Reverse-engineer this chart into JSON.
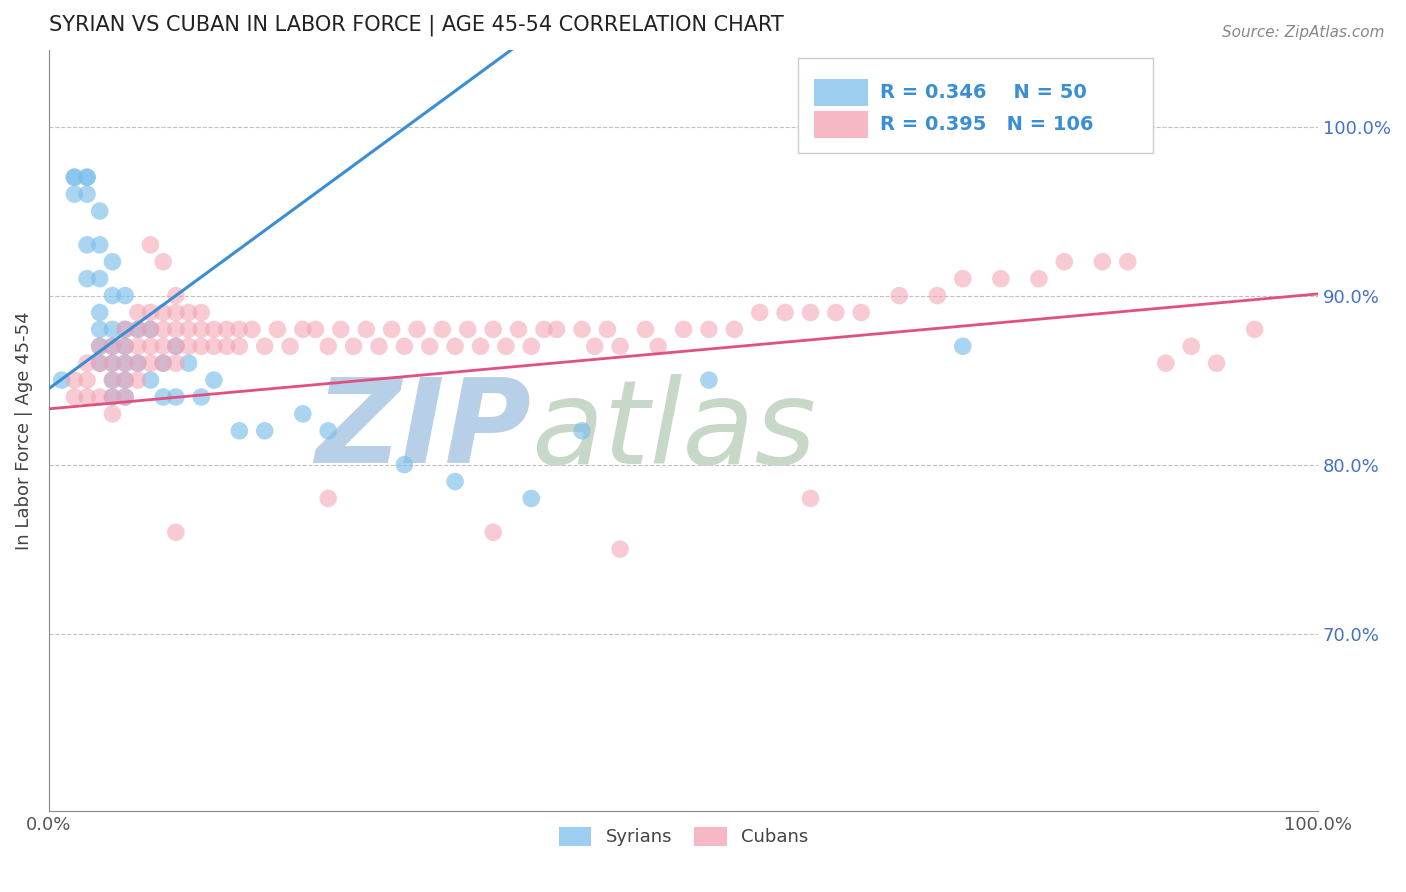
{
  "title": "SYRIAN VS CUBAN IN LABOR FORCE | AGE 45-54 CORRELATION CHART",
  "source": "Source: ZipAtlas.com",
  "ylabel": "In Labor Force | Age 45-54",
  "xlim": [
    0.0,
    1.0
  ],
  "ylim": [
    0.595,
    1.045
  ],
  "yticks": [
    0.7,
    0.8,
    0.9,
    1.0
  ],
  "ytick_labels": [
    "70.0%",
    "80.0%",
    "90.0%",
    "100.0%"
  ],
  "blue_R": 0.346,
  "blue_N": 50,
  "pink_R": 0.395,
  "pink_N": 106,
  "blue_color": "#7bbfea",
  "pink_color": "#f4a0b0",
  "blue_line_color": "#3a8fd4",
  "pink_line_color": "#e05080",
  "syrians_x": [
    0.01,
    0.02,
    0.02,
    0.02,
    0.03,
    0.03,
    0.03,
    0.03,
    0.03,
    0.04,
    0.04,
    0.04,
    0.04,
    0.04,
    0.04,
    0.04,
    0.05,
    0.05,
    0.05,
    0.05,
    0.05,
    0.05,
    0.05,
    0.06,
    0.06,
    0.06,
    0.06,
    0.06,
    0.06,
    0.07,
    0.07,
    0.08,
    0.08,
    0.09,
    0.09,
    0.1,
    0.1,
    0.11,
    0.12,
    0.13,
    0.15,
    0.17,
    0.2,
    0.22,
    0.28,
    0.32,
    0.38,
    0.42,
    0.52,
    0.72
  ],
  "syrians_y": [
    0.85,
    0.97,
    0.97,
    0.96,
    0.97,
    0.97,
    0.96,
    0.93,
    0.91,
    0.95,
    0.93,
    0.91,
    0.89,
    0.88,
    0.87,
    0.86,
    0.92,
    0.9,
    0.88,
    0.87,
    0.86,
    0.85,
    0.84,
    0.9,
    0.88,
    0.87,
    0.86,
    0.85,
    0.84,
    0.88,
    0.86,
    0.88,
    0.85,
    0.86,
    0.84,
    0.87,
    0.84,
    0.86,
    0.84,
    0.85,
    0.82,
    0.82,
    0.83,
    0.82,
    0.8,
    0.79,
    0.78,
    0.82,
    0.85,
    0.87
  ],
  "cubans_x": [
    0.02,
    0.02,
    0.03,
    0.03,
    0.03,
    0.04,
    0.04,
    0.04,
    0.05,
    0.05,
    0.05,
    0.05,
    0.05,
    0.06,
    0.06,
    0.06,
    0.06,
    0.06,
    0.07,
    0.07,
    0.07,
    0.07,
    0.07,
    0.08,
    0.08,
    0.08,
    0.08,
    0.09,
    0.09,
    0.09,
    0.09,
    0.1,
    0.1,
    0.1,
    0.1,
    0.1,
    0.11,
    0.11,
    0.11,
    0.12,
    0.12,
    0.12,
    0.13,
    0.13,
    0.14,
    0.14,
    0.15,
    0.15,
    0.16,
    0.17,
    0.18,
    0.19,
    0.2,
    0.21,
    0.22,
    0.23,
    0.24,
    0.25,
    0.26,
    0.27,
    0.28,
    0.29,
    0.3,
    0.31,
    0.32,
    0.33,
    0.34,
    0.35,
    0.36,
    0.37,
    0.38,
    0.39,
    0.4,
    0.42,
    0.43,
    0.44,
    0.45,
    0.47,
    0.48,
    0.5,
    0.52,
    0.54,
    0.56,
    0.58,
    0.6,
    0.62,
    0.64,
    0.67,
    0.7,
    0.72,
    0.75,
    0.78,
    0.8,
    0.83,
    0.85,
    0.88,
    0.9,
    0.92,
    0.95,
    0.08,
    0.09,
    0.1,
    0.22,
    0.35,
    0.45,
    0.6
  ],
  "cubans_y": [
    0.85,
    0.84,
    0.86,
    0.85,
    0.84,
    0.87,
    0.86,
    0.84,
    0.87,
    0.86,
    0.85,
    0.84,
    0.83,
    0.88,
    0.87,
    0.86,
    0.85,
    0.84,
    0.89,
    0.88,
    0.87,
    0.86,
    0.85,
    0.89,
    0.88,
    0.87,
    0.86,
    0.89,
    0.88,
    0.87,
    0.86,
    0.9,
    0.89,
    0.88,
    0.87,
    0.86,
    0.89,
    0.88,
    0.87,
    0.89,
    0.88,
    0.87,
    0.88,
    0.87,
    0.88,
    0.87,
    0.88,
    0.87,
    0.88,
    0.87,
    0.88,
    0.87,
    0.88,
    0.88,
    0.87,
    0.88,
    0.87,
    0.88,
    0.87,
    0.88,
    0.87,
    0.88,
    0.87,
    0.88,
    0.87,
    0.88,
    0.87,
    0.88,
    0.87,
    0.88,
    0.87,
    0.88,
    0.88,
    0.88,
    0.87,
    0.88,
    0.87,
    0.88,
    0.87,
    0.88,
    0.88,
    0.88,
    0.89,
    0.89,
    0.89,
    0.89,
    0.89,
    0.9,
    0.9,
    0.91,
    0.91,
    0.91,
    0.92,
    0.92,
    0.92,
    0.86,
    0.87,
    0.86,
    0.88,
    0.93,
    0.92,
    0.76,
    0.78,
    0.76,
    0.75,
    0.78
  ],
  "watermark_text1": "ZIP",
  "watermark_text2": "atlas",
  "watermark_color1": "#b8cfe8",
  "watermark_color2": "#c8d8c8",
  "watermark_fontsize": 85
}
